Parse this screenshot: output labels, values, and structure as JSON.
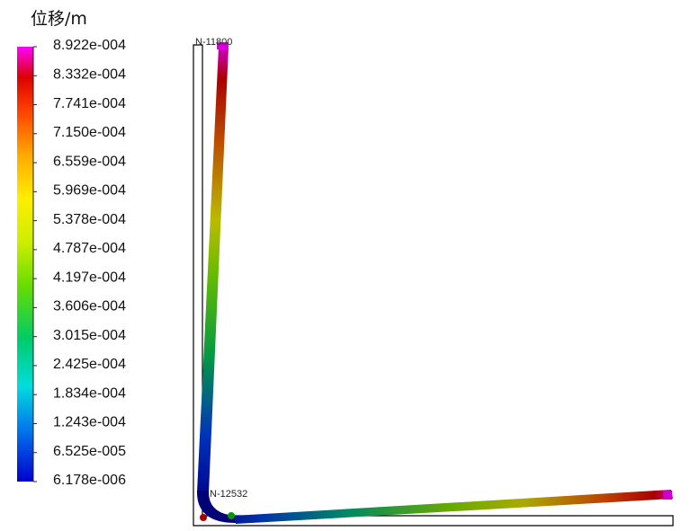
{
  "legend": {
    "title": "位移/m",
    "labels": [
      "8.922e-004",
      "8.332e-004",
      "7.741e-004",
      "7.150e-004",
      "6.559e-004",
      "5.969e-004",
      "5.378e-004",
      "4.787e-004",
      "4.197e-004",
      "3.606e-004",
      "3.015e-004",
      "2.425e-004",
      "1.834e-004",
      "1.243e-004",
      "6.525e-005",
      "6.178e-006"
    ],
    "colors": [
      "#ff00ff",
      "#d0003a",
      "#e60000",
      "#ff3300",
      "#ff7700",
      "#ffaa00",
      "#ffdd00",
      "#ffff00",
      "#bbee00",
      "#55dd00",
      "#00cc33",
      "#00cc99",
      "#00dddd",
      "#00aaee",
      "#0066dd",
      "#0000cc"
    ]
  },
  "nodes": {
    "top": "N-11800",
    "corner": "N-12532"
  },
  "colors": {
    "min": "#0000cc",
    "low": "#00bb66",
    "mid": "#ccdd00",
    "high": "#cc0000",
    "max": "#ff00ff",
    "undeformed_outline": "#000000"
  }
}
